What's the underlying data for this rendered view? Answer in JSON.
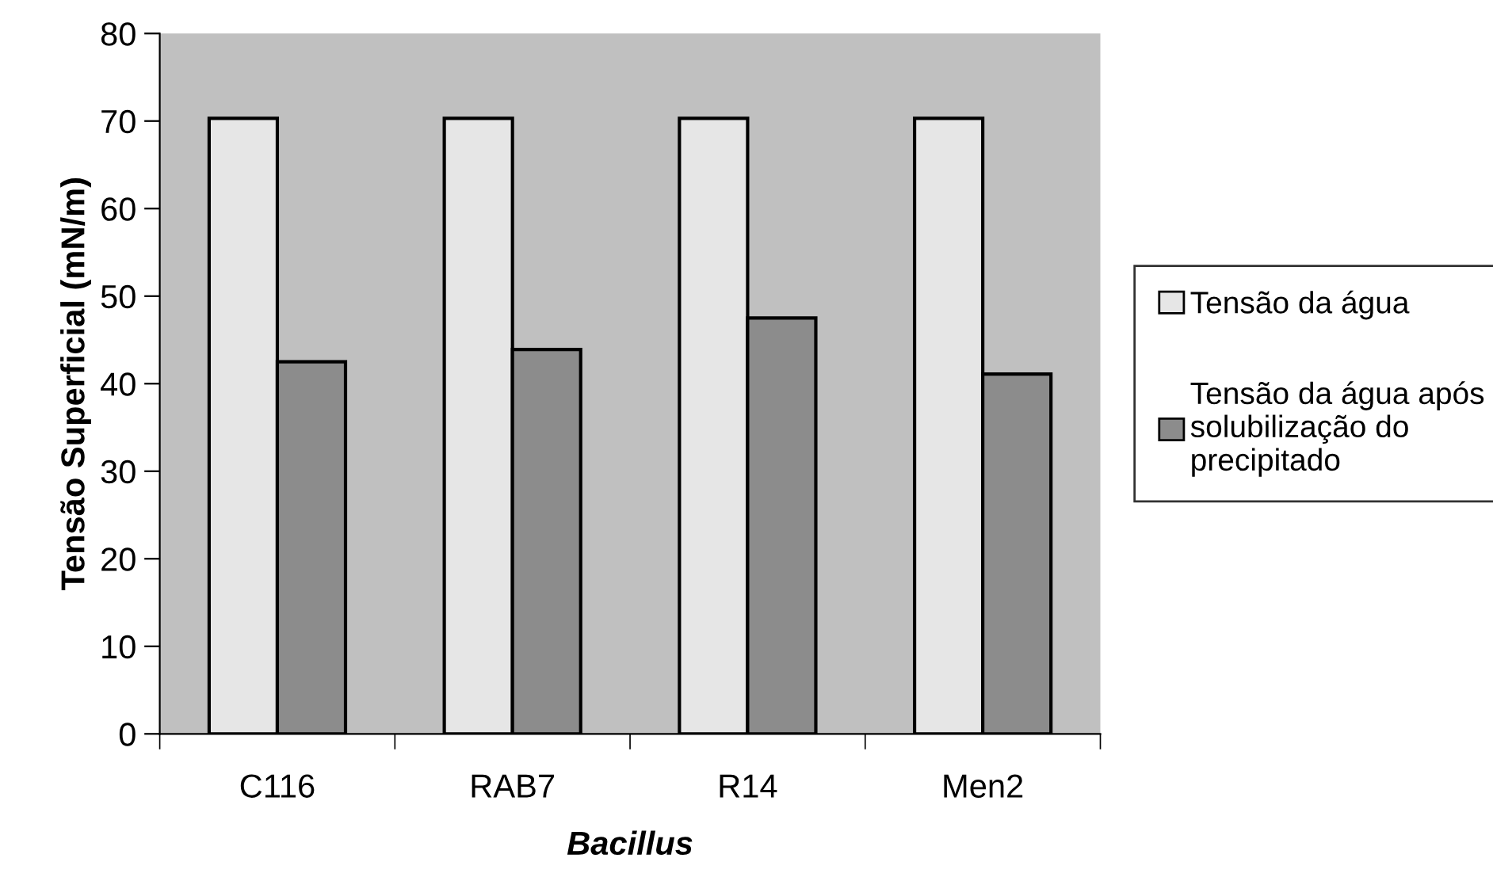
{
  "chart_data": {
    "type": "bar",
    "xlabel": "Bacillus",
    "ylabel": "Tensão Superficial (mN/m)",
    "categories": [
      "C116",
      "RAB7",
      "R14",
      "Men2"
    ],
    "series": [
      {
        "name": "Tensão da água",
        "color": "#e6e6e6",
        "values": [
          70.3,
          70.3,
          70.3,
          70.3
        ]
      },
      {
        "name": "Tensão da água após solubilização do precipitado",
        "color": "#8c8c8c",
        "values": [
          42.5,
          43.9,
          47.5,
          41.1
        ]
      }
    ],
    "ylim": [
      0,
      80
    ],
    "yticks": [
      0,
      10,
      20,
      30,
      40,
      50,
      60,
      70,
      80
    ],
    "grid": false,
    "legend": "right"
  }
}
